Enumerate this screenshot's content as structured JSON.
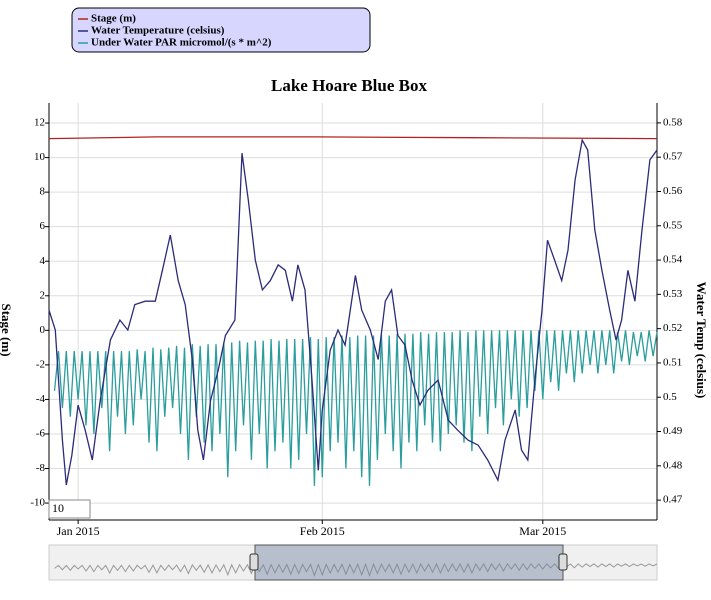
{
  "chart_data": {
    "type": "line",
    "title": "Lake Hoare Blue Box",
    "y_label": "Stage (m)",
    "y2_label": "Water Temp (celsius)",
    "roll_period": "10",
    "xlim": [
      -3.7,
      73.5
    ],
    "xticks": [
      {
        "value": 0,
        "label": "Jan 2015"
      },
      {
        "value": 31,
        "label": "Feb 2015"
      },
      {
        "value": 59,
        "label": "Mar 2015"
      }
    ],
    "ylim": [
      -10.98,
      13.16
    ],
    "yticks": [
      -10,
      -8,
      -6,
      -4,
      -2,
      0,
      2,
      4,
      6,
      8,
      10,
      12
    ],
    "y2lim": [
      0.4642,
      0.5858
    ],
    "y2ticks": [
      0.47,
      0.48,
      0.49,
      0.5,
      0.51,
      0.52,
      0.53,
      0.54,
      0.55,
      0.56,
      0.57,
      0.58
    ],
    "grid": true,
    "series": [
      {
        "name": "Stage (m)",
        "color": "#b22222",
        "x": [
          -3.7,
          10,
          30,
          50,
          73.5
        ],
        "values": [
          11.1,
          11.2,
          11.2,
          11.15,
          11.1
        ]
      },
      {
        "name": "Water Temperature (celsius)",
        "color": "#2b2b7a",
        "axis": "y2",
        "x": [
          -3.7,
          -2.9,
          -2.0,
          -1.5,
          -0.8,
          0,
          0.9,
          1.8,
          2.8,
          4.1,
          5.3,
          6.3,
          7.2,
          8.5,
          9.8,
          10.7,
          11.7,
          12.7,
          13.6,
          14.5,
          15.2,
          15.9,
          16.8,
          17.8,
          18.7,
          19.9,
          20.8,
          21.6,
          22.5,
          23.4,
          24.4,
          25.4,
          26.3,
          27.2,
          27.9,
          28.8,
          29.7,
          30.5,
          31.0,
          32.0,
          33.0,
          33.9,
          35.2,
          36.0,
          37.1,
          38.1,
          39.0,
          39.8,
          40.6,
          41.5,
          42.4,
          43.4,
          44.4,
          45.7,
          47.0,
          48.2,
          49.5,
          50.8,
          52.0,
          53.3,
          54.2,
          55.5,
          56.3,
          57.1,
          58.0,
          58.9,
          59.6,
          60.5,
          61.4,
          62.2,
          63.1,
          64.0,
          64.7,
          65.6,
          66.5,
          67.5,
          68.3,
          69.0,
          69.8,
          70.7,
          71.6,
          72.6,
          73.5
        ],
        "values": [
          0.5254,
          0.5196,
          0.4875,
          0.4744,
          0.483,
          0.4977,
          0.4904,
          0.4817,
          0.499,
          0.5167,
          0.5225,
          0.5196,
          0.527,
          0.528,
          0.528,
          0.537,
          0.5473,
          0.534,
          0.527,
          0.511,
          0.4904,
          0.4817,
          0.499,
          0.508,
          0.518,
          0.5225,
          0.5712,
          0.5575,
          0.54,
          0.5313,
          0.534,
          0.5386,
          0.537,
          0.528,
          0.5386,
          0.5313,
          0.505,
          0.4787,
          0.4963,
          0.5137,
          0.5196,
          0.5152,
          0.5355,
          0.5254,
          0.5196,
          0.511,
          0.528,
          0.5313,
          0.518,
          0.5152,
          0.505,
          0.4977,
          0.502,
          0.505,
          0.4933,
          0.4904,
          0.4875,
          0.486,
          0.4817,
          0.4758,
          0.4875,
          0.4963,
          0.4846,
          0.4817,
          0.505,
          0.5254,
          0.5458,
          0.54,
          0.534,
          0.5429,
          0.5634,
          0.575,
          0.5721,
          0.5488,
          0.537,
          0.5254,
          0.5167,
          0.5225,
          0.537,
          0.528,
          0.5488,
          0.5692,
          0.5721
        ]
      },
      {
        "name": "Under Water PAR micromol/(s * m^2)",
        "color": "#2a9d9d",
        "x": [
          -3,
          -2.5,
          -2,
          -1.5,
          -1,
          -0.5,
          0,
          0.5,
          1,
          1.5,
          2,
          2.5,
          3,
          3.5,
          4,
          4.5,
          5,
          5.5,
          6,
          6.5,
          7,
          7.5,
          8,
          8.5,
          9,
          9.5,
          10,
          10.5,
          11,
          11.5,
          12,
          12.5,
          13,
          13.5,
          14,
          14.5,
          15,
          15.5,
          16,
          16.5,
          17,
          17.5,
          18,
          18.5,
          19,
          19.5,
          20,
          20.5,
          21,
          21.5,
          22,
          22.5,
          23,
          23.5,
          24,
          24.5,
          25,
          25.5,
          26,
          26.5,
          27,
          27.5,
          28,
          28.5,
          29,
          29.5,
          30,
          30.5,
          31,
          31.5,
          32,
          32.5,
          33,
          33.5,
          34,
          34.5,
          35,
          35.5,
          36,
          36.5,
          37,
          37.5,
          38,
          38.5,
          39,
          39.5,
          40,
          40.5,
          41,
          41.5,
          42,
          42.5,
          43,
          43.5,
          44,
          44.5,
          45,
          45.5,
          46,
          46.5,
          47,
          47.5,
          48,
          48.5,
          49,
          49.5,
          50,
          50.5,
          51,
          51.5,
          52,
          52.5,
          53,
          53.5,
          54,
          54.5,
          55,
          55.5,
          56,
          56.5,
          57,
          57.5,
          58,
          58.5,
          59,
          59.5,
          60,
          60.5,
          61,
          61.5,
          62,
          62.5,
          63,
          63.5,
          64,
          64.5,
          65,
          65.5,
          66,
          66.5,
          67,
          67.5,
          68,
          68.5,
          69,
          69.5,
          70,
          70.5,
          71,
          71.5,
          72,
          72.5,
          73,
          73.5
        ],
        "values": [
          -3.5,
          -1.2,
          -4.5,
          -1.2,
          -5,
          -1.2,
          -4,
          -1.2,
          -5.5,
          -1.2,
          -6,
          -1.2,
          -4.5,
          -1.2,
          -7,
          -1.2,
          -5,
          -1.2,
          -6,
          -1.2,
          -5.5,
          -1.1,
          -4,
          -1.2,
          -6.5,
          -1.0,
          -7,
          -1.1,
          -5,
          -1.0,
          -4.5,
          -0.9,
          -6,
          -1.0,
          -7.5,
          -0.8,
          -5,
          -0.9,
          -6.5,
          -0.8,
          -7,
          -0.8,
          -6,
          -0.7,
          -8.5,
          -0.7,
          -7,
          -0.6,
          -5.5,
          -0.7,
          -7.5,
          -0.6,
          -6,
          -0.6,
          -8,
          -0.5,
          -7,
          -0.6,
          -6.5,
          -0.5,
          -8,
          -0.5,
          -7.5,
          -0.5,
          -6,
          -0.4,
          -9,
          -0.5,
          -8.5,
          -0.4,
          -7,
          -0.4,
          -6.5,
          -0.3,
          -8,
          -0.4,
          -7,
          -0.3,
          -8.5,
          -0.3,
          -9,
          -0.3,
          -7.5,
          -0.2,
          -6,
          -0.3,
          -7,
          -0.2,
          -8,
          -0.2,
          -6.5,
          -0.2,
          -7,
          -0.1,
          -5.5,
          -0.2,
          -6.5,
          -0.1,
          -7,
          -0.1,
          -6,
          -0.1,
          -5.5,
          0,
          -6.5,
          -0.1,
          -7,
          0,
          -5,
          0,
          -6,
          0,
          -4.5,
          0,
          -5.5,
          0,
          -4,
          0,
          -5,
          0,
          -4.5,
          0,
          -3.5,
          0,
          -4,
          0,
          -3,
          0,
          -3.5,
          0,
          -2.5,
          0,
          -3,
          0,
          -2.5,
          0,
          -2,
          0,
          -2.5,
          0,
          -2,
          0,
          -2.5,
          -0.1,
          -1.8,
          0,
          -2,
          -0.1,
          -1.5,
          -0.1,
          -1.8,
          0,
          -1.5,
          -0.1
        ]
      }
    ]
  }
}
